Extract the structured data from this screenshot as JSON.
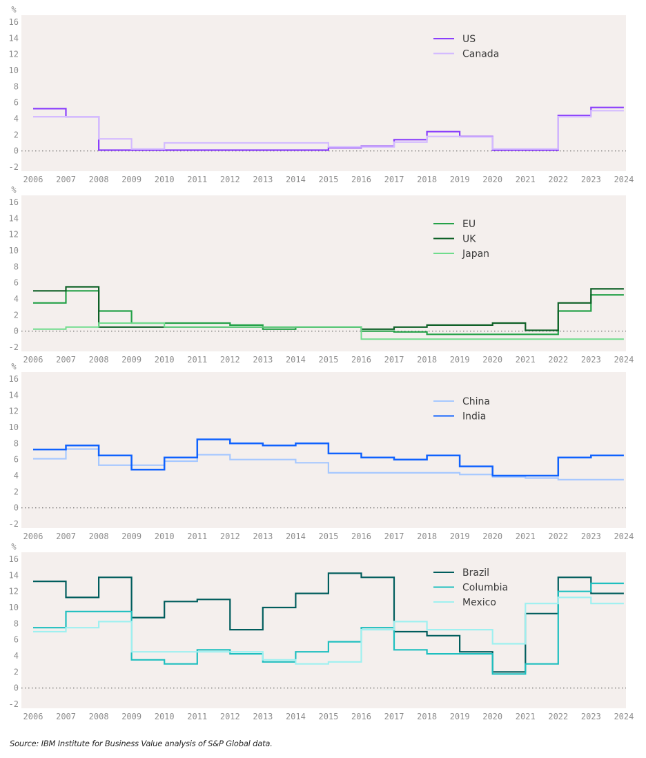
{
  "chart_data": [
    {
      "type": "line",
      "step": true,
      "title": "",
      "ylabel": "%",
      "xlabel": "",
      "ylim": [
        -2,
        16
      ],
      "yticks": [
        "16",
        "14",
        "12",
        "10",
        "8",
        "6",
        "4",
        "2",
        "0",
        "-2"
      ],
      "x": [
        "2006",
        "2007",
        "2008",
        "2009",
        "2010",
        "2011",
        "2012",
        "2013",
        "2014",
        "2015",
        "2016",
        "2017",
        "2018",
        "2019",
        "2020",
        "2021",
        "2022",
        "2023",
        "2024"
      ],
      "legend_position": "top-right",
      "series": [
        {
          "name": "US",
          "color": "#8a3ffc",
          "width": 2.2,
          "values": [
            5.25,
            4.25,
            0.1,
            0.1,
            0.1,
            0.1,
            0.1,
            0.1,
            0.1,
            0.4,
            0.6,
            1.4,
            2.4,
            1.8,
            0.1,
            0.1,
            4.4,
            5.4,
            5.4
          ]
        },
        {
          "name": "Canada",
          "color": "#d4bbff",
          "width": 2.2,
          "values": [
            4.25,
            4.25,
            1.5,
            0.25,
            1.0,
            1.0,
            1.0,
            1.0,
            1.0,
            0.5,
            0.5,
            1.1,
            1.8,
            1.75,
            0.25,
            0.25,
            4.25,
            5.0,
            5.0
          ]
        }
      ]
    },
    {
      "type": "line",
      "step": true,
      "title": "",
      "ylabel": "%",
      "xlabel": "",
      "ylim": [
        -2,
        16
      ],
      "yticks": [
        "16",
        "14",
        "12",
        "10",
        "8",
        "6",
        "4",
        "2",
        "0",
        "-2"
      ],
      "x": [
        "2006",
        "2007",
        "2008",
        "2009",
        "2010",
        "2011",
        "2012",
        "2013",
        "2014",
        "2015",
        "2016",
        "2017",
        "2018",
        "2019",
        "2020",
        "2021",
        "2022",
        "2023",
        "2024"
      ],
      "legend_position": "top-right",
      "series": [
        {
          "name": "EU",
          "color": "#24a148",
          "width": 2.2,
          "values": [
            3.5,
            5.0,
            2.5,
            1.0,
            1.0,
            1.0,
            0.75,
            0.25,
            0.5,
            0.5,
            0.0,
            -0.1,
            -0.4,
            -0.4,
            -0.4,
            -0.4,
            2.5,
            4.5,
            4.5
          ]
        },
        {
          "name": "UK",
          "color": "#0e6027",
          "width": 2.2,
          "values": [
            5.0,
            5.5,
            0.5,
            0.5,
            0.5,
            0.5,
            0.5,
            0.5,
            0.5,
            0.5,
            0.25,
            0.5,
            0.75,
            0.75,
            1.0,
            0.1,
            3.5,
            5.25,
            5.25
          ]
        },
        {
          "name": "Japan",
          "color": "#6fdc8c",
          "width": 2.0,
          "values": [
            0.25,
            0.5,
            1.0,
            1.0,
            0.5,
            0.5,
            0.5,
            0.5,
            0.5,
            0.5,
            -1.0,
            -1.0,
            -1.0,
            -1.0,
            -1.0,
            -1.0,
            -1.0,
            -1.0,
            -1.0
          ]
        }
      ]
    },
    {
      "type": "line",
      "step": true,
      "title": "",
      "ylabel": "%",
      "xlabel": "",
      "ylim": [
        -2,
        16
      ],
      "yticks": [
        "16",
        "14",
        "12",
        "10",
        "8",
        "6",
        "4",
        "2",
        "0",
        "-2"
      ],
      "x": [
        "2006",
        "2007",
        "2008",
        "2009",
        "2010",
        "2011",
        "2012",
        "2013",
        "2014",
        "2015",
        "2016",
        "2017",
        "2018",
        "2019",
        "2020",
        "2021",
        "2022",
        "2023",
        "2024"
      ],
      "legend_position": "top-right",
      "series": [
        {
          "name": "China",
          "color": "#a6c8ff",
          "width": 2.2,
          "values": [
            6.1,
            7.3,
            5.3,
            5.3,
            5.8,
            6.6,
            6.0,
            6.0,
            5.6,
            4.35,
            4.35,
            4.35,
            4.35,
            4.15,
            3.85,
            3.7,
            3.5,
            3.5,
            3.5
          ]
        },
        {
          "name": "India",
          "color": "#0f62fe",
          "width": 2.5,
          "values": [
            7.25,
            7.75,
            6.5,
            4.75,
            6.25,
            8.5,
            8.0,
            7.75,
            8.0,
            6.75,
            6.25,
            6.0,
            6.5,
            5.15,
            4.0,
            4.0,
            6.25,
            6.5,
            6.5
          ]
        }
      ]
    },
    {
      "type": "line",
      "step": true,
      "title": "",
      "ylabel": "%",
      "xlabel": "",
      "ylim": [
        -2,
        16
      ],
      "yticks": [
        "16",
        "14",
        "12",
        "10",
        "8",
        "6",
        "4",
        "2",
        "0",
        "-2"
      ],
      "x": [
        "2006",
        "2007",
        "2008",
        "2009",
        "2010",
        "2011",
        "2012",
        "2013",
        "2014",
        "2015",
        "2016",
        "2017",
        "2018",
        "2019",
        "2020",
        "2021",
        "2022",
        "2023",
        "2024"
      ],
      "legend_position": "top-right",
      "series": [
        {
          "name": "Brazil",
          "color": "#005d5d",
          "width": 2.2,
          "values": [
            13.25,
            11.25,
            13.75,
            8.75,
            10.75,
            11.0,
            7.25,
            10.0,
            11.75,
            14.25,
            13.75,
            7.0,
            6.5,
            4.5,
            2.0,
            9.25,
            13.75,
            11.75,
            11.75
          ]
        },
        {
          "name": "Columbia",
          "color": "#1ebfbf",
          "width": 2.2,
          "values": [
            7.5,
            9.5,
            9.5,
            3.5,
            3.0,
            4.75,
            4.25,
            3.25,
            4.5,
            5.75,
            7.5,
            4.75,
            4.25,
            4.25,
            1.75,
            3.0,
            12.0,
            13.0,
            13.0
          ]
        },
        {
          "name": "Mexico",
          "color": "#9ef0f0",
          "width": 2.2,
          "values": [
            7.0,
            7.5,
            8.25,
            4.5,
            4.5,
            4.5,
            4.5,
            3.5,
            3.0,
            3.25,
            7.25,
            8.25,
            7.25,
            7.25,
            5.5,
            10.5,
            11.25,
            10.5,
            10.5
          ]
        }
      ]
    }
  ],
  "footer": {
    "source": "Source: IBM Institute for Business Value analysis of S&P Global data."
  }
}
